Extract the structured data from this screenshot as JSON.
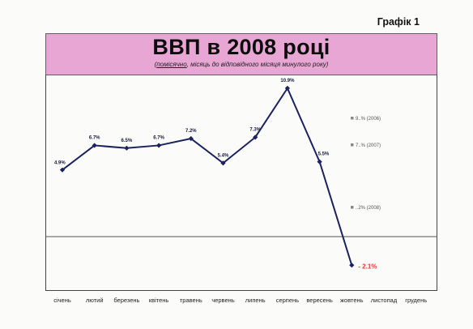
{
  "figure_label": "Графік 1",
  "title": "ВВП в 2008 році",
  "subtitle_prefix": "(",
  "subtitle_highlight": "помісячно",
  "subtitle_rest": ", місяць до відповідного місяця минулого року)",
  "colors": {
    "title_bg": "#e8a6d4",
    "line": "#1c2260",
    "marker": "#1c2260",
    "negative_label": "#e2403a"
  },
  "chart_data": {
    "type": "line",
    "title": "ВВП в 2008 році",
    "categories": [
      "січень",
      "лютий",
      "березень",
      "квітень",
      "травень",
      "червень",
      "липень",
      "серпень",
      "вересень",
      "жовтень",
      "листопад",
      "грудень"
    ],
    "values": [
      4.9,
      6.7,
      6.5,
      6.7,
      7.2,
      5.4,
      7.3,
      10.9,
      5.5,
      -2.1,
      null,
      null
    ],
    "value_labels": [
      "4.9%",
      "6.7%",
      "6.5%",
      "6.7%",
      "7.2%",
      "5.4%",
      "7.3%",
      "10.9%",
      "5.5%",
      "- 2.1%",
      "",
      ""
    ],
    "ylim": [
      -3,
      13
    ],
    "zero_line": true,
    "grid": false,
    "legend_position": "right",
    "legend": [
      "9..% (2006)",
      "7..% (2007)",
      "..2% (2008)"
    ]
  }
}
